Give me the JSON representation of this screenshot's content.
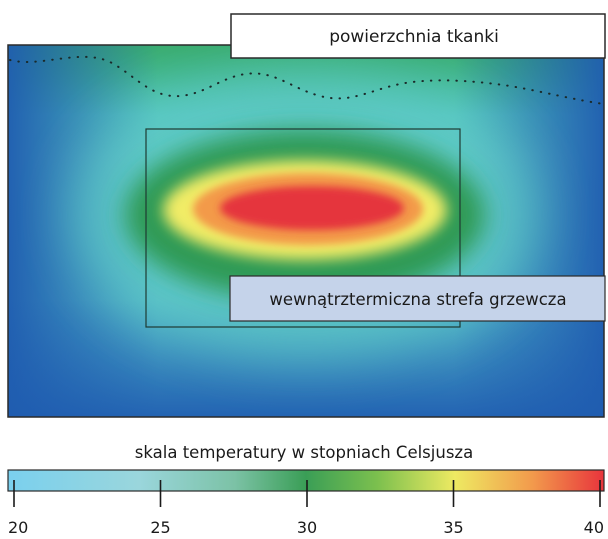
{
  "labels": {
    "surface": "powierzchnia tkanki",
    "heating_zone": "wewnątrztermiczna strefa grzewcza"
  },
  "scale": {
    "title": "skala temperatury w stopniach Celsjusza",
    "ticks": [
      "20",
      "25",
      "30",
      "35",
      "40"
    ]
  },
  "colors": {
    "cold": "#2a5fb0",
    "cool": "#5fc6cc",
    "mid": "#2e9a52",
    "warm": "#f2ee6a",
    "hot": "#e8343c",
    "scale_start": "#7ad0ee",
    "callout_zone": "#c5d3ea"
  }
}
